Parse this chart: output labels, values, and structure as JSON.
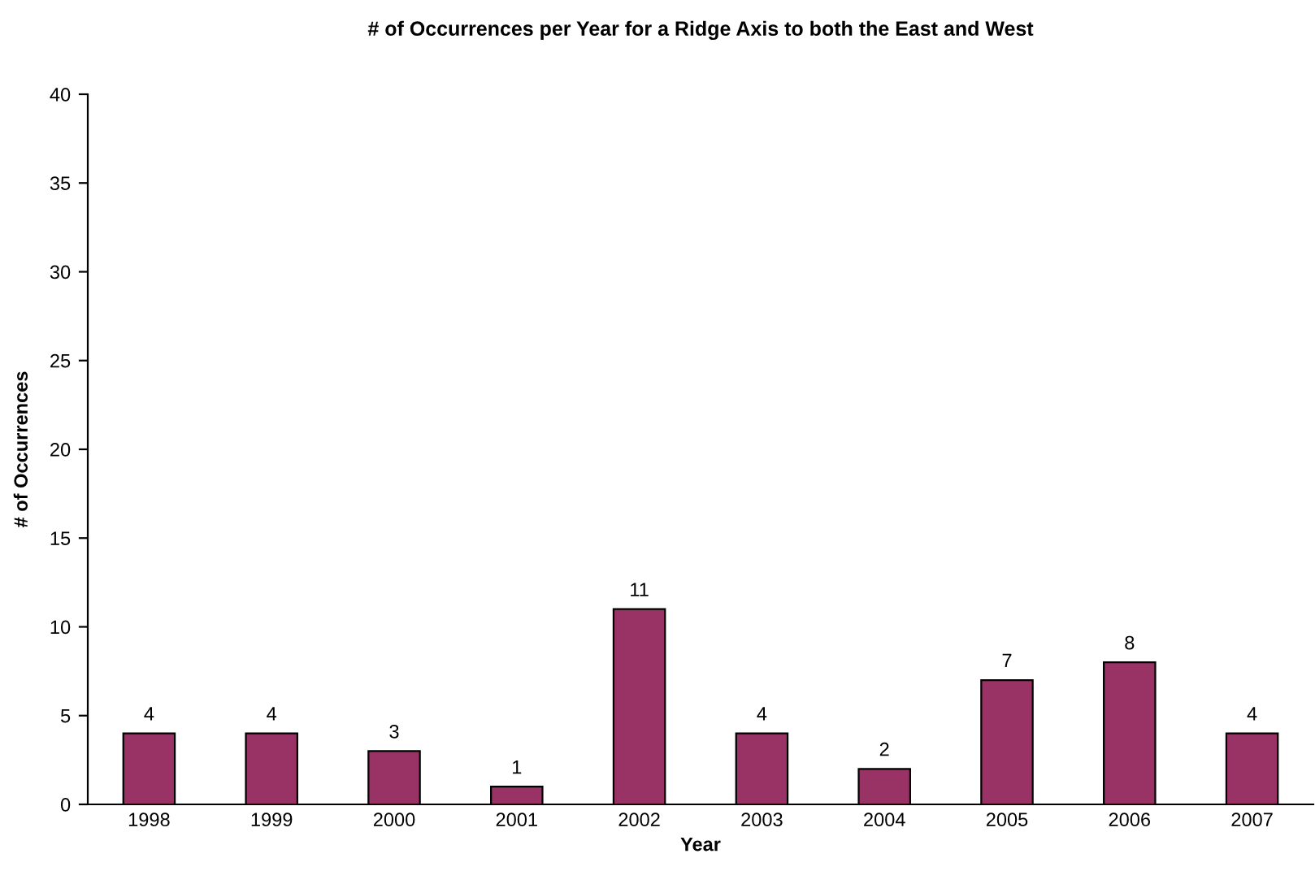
{
  "chart_data": {
    "type": "bar",
    "title": "# of Occurrences per Year for a Ridge Axis to both the East and West",
    "xlabel": "Year",
    "ylabel": "# of Occurrences",
    "categories": [
      "1998",
      "1999",
      "2000",
      "2001",
      "2002",
      "2003",
      "2004",
      "2005",
      "2006",
      "2007"
    ],
    "values": [
      4,
      4,
      3,
      1,
      11,
      4,
      2,
      7,
      8,
      4
    ],
    "color": "#993366",
    "ylim": [
      0,
      40
    ],
    "yticks": [
      0,
      5,
      10,
      15,
      20,
      25,
      30,
      35,
      40
    ],
    "grid": false,
    "data_labels": true
  }
}
